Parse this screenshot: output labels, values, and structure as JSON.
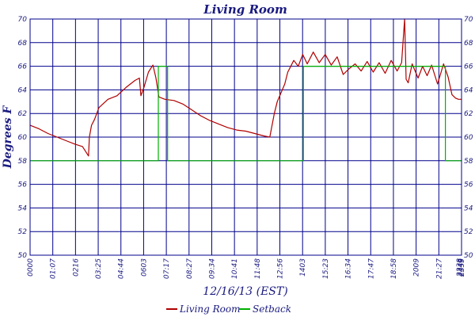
{
  "chart_data": {
    "type": "line",
    "title": "Living Room",
    "xlabel": "12/16/13 (EST)",
    "ylabel": "Degrees F",
    "ylim": [
      50,
      70
    ],
    "xlim": [
      0,
      1440
    ],
    "yticks": [
      50,
      52,
      54,
      56,
      58,
      60,
      62,
      64,
      66,
      68,
      70
    ],
    "xtick_labels": [
      "0000",
      "01:07",
      "0216",
      "03:25",
      "04:44",
      "0603",
      "07:17",
      "08:27",
      "09:34",
      "10:41",
      "11:48",
      "12:56",
      "1403",
      "15:23",
      "16:34",
      "17:47",
      "18:58",
      "2009",
      "21:27",
      "2238",
      "2349",
      "2359"
    ],
    "grid": true,
    "legend": "bottom",
    "colors": {
      "living_room": "#b00000",
      "setback": "#00b000",
      "grid": "#00008b",
      "text": "#1a1a80"
    },
    "series": [
      {
        "name": "Living Room",
        "x": [
          0,
          30,
          60,
          90,
          120,
          150,
          175,
          195,
          198,
          205,
          215,
          230,
          260,
          290,
          320,
          350,
          365,
          370,
          380,
          395,
          410,
          420,
          430,
          450,
          480,
          510,
          540,
          570,
          600,
          630,
          660,
          690,
          720,
          750,
          780,
          800,
          815,
          825,
          835,
          850,
          860,
          880,
          895,
          910,
          925,
          945,
          965,
          985,
          1005,
          1025,
          1045,
          1065,
          1085,
          1105,
          1125,
          1145,
          1165,
          1185,
          1205,
          1225,
          1240,
          1250,
          1255,
          1262,
          1275,
          1295,
          1310,
          1325,
          1340,
          1360,
          1380,
          1395,
          1408,
          1420,
          1430,
          1440
        ],
        "values": [
          61.0,
          60.7,
          60.3,
          60.0,
          59.7,
          59.4,
          59.2,
          58.4,
          60.0,
          61.0,
          61.5,
          62.5,
          63.2,
          63.5,
          64.2,
          64.8,
          65.0,
          63.5,
          64.2,
          65.5,
          66.1,
          65.0,
          63.4,
          63.2,
          63.1,
          62.8,
          62.3,
          61.8,
          61.4,
          61.1,
          60.8,
          60.6,
          60.5,
          60.3,
          60.1,
          60.0,
          62.0,
          63.0,
          63.6,
          64.5,
          65.5,
          66.5,
          66.0,
          67.0,
          66.2,
          67.2,
          66.3,
          67.0,
          66.1,
          66.8,
          65.3,
          65.8,
          66.2,
          65.6,
          66.4,
          65.5,
          66.3,
          65.4,
          66.5,
          65.6,
          66.3,
          70.0,
          64.9,
          64.6,
          66.2,
          65.0,
          66.0,
          65.2,
          66.1,
          64.5,
          66.2,
          65.1,
          63.6,
          63.3,
          63.2,
          63.2
        ]
      },
      {
        "name": "Setback",
        "x": [
          0,
          428,
          428,
          459,
          459,
          912,
          912,
          1386,
          1386,
          1440
        ],
        "values": [
          58,
          58,
          66,
          66,
          58,
          58,
          66,
          66,
          58,
          58
        ]
      }
    ]
  }
}
